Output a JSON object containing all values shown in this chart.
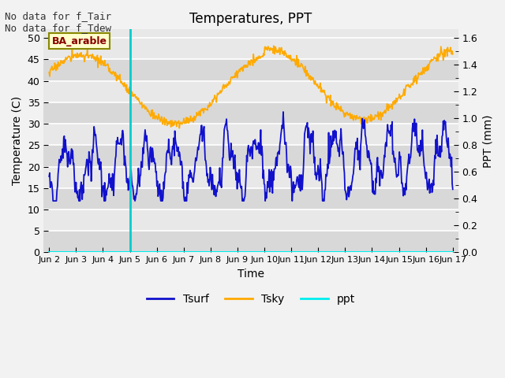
{
  "title": "Temperatures, PPT",
  "xlabel": "Time",
  "ylabel_left": "Temperature (C)",
  "ylabel_right": "PPT (mm)",
  "annotation_text": "No data for f_Tair\nNo data for f_Tdew",
  "box_label": "BA_arable",
  "vline_x": 3.0,
  "left_ylim": [
    0,
    52
  ],
  "right_ylim": [
    0.0,
    1.664
  ],
  "left_yticks": [
    0,
    5,
    10,
    15,
    20,
    25,
    30,
    35,
    40,
    45,
    50
  ],
  "right_yticks": [
    0.0,
    0.2,
    0.4,
    0.6,
    0.8,
    1.0,
    1.2,
    1.4,
    1.6
  ],
  "xtick_labels": [
    "Jun 2",
    "Jun 3",
    "Jun 4",
    "Jun 5",
    "Jun 6",
    "Jun 7",
    "Jun 8",
    "Jun 9",
    "Jun 10",
    "Jun 11",
    "Jun 12",
    "Jun 13",
    "Jun 14",
    "Jun 15",
    "Jun 16",
    "Jun 17"
  ],
  "color_tsurf": "#1111cc",
  "color_tsky": "#ffaa00",
  "color_ppt": "#00eeee",
  "color_vline": "#00cccc",
  "bg_color": "#e8e8e8",
  "plot_bg_alt1": "#d8d8d8",
  "plot_bg_alt2": "#e8e8e8",
  "grid_color": "#ffffff",
  "fig_bg": "#f2f2f2",
  "box_facecolor": "#ffffcc",
  "box_edgecolor": "#888800",
  "box_textcolor": "#880000",
  "annotation_fontsize": 9,
  "title_fontsize": 12,
  "label_fontsize": 10,
  "tick_fontsize": 9,
  "legend_fontsize": 10
}
